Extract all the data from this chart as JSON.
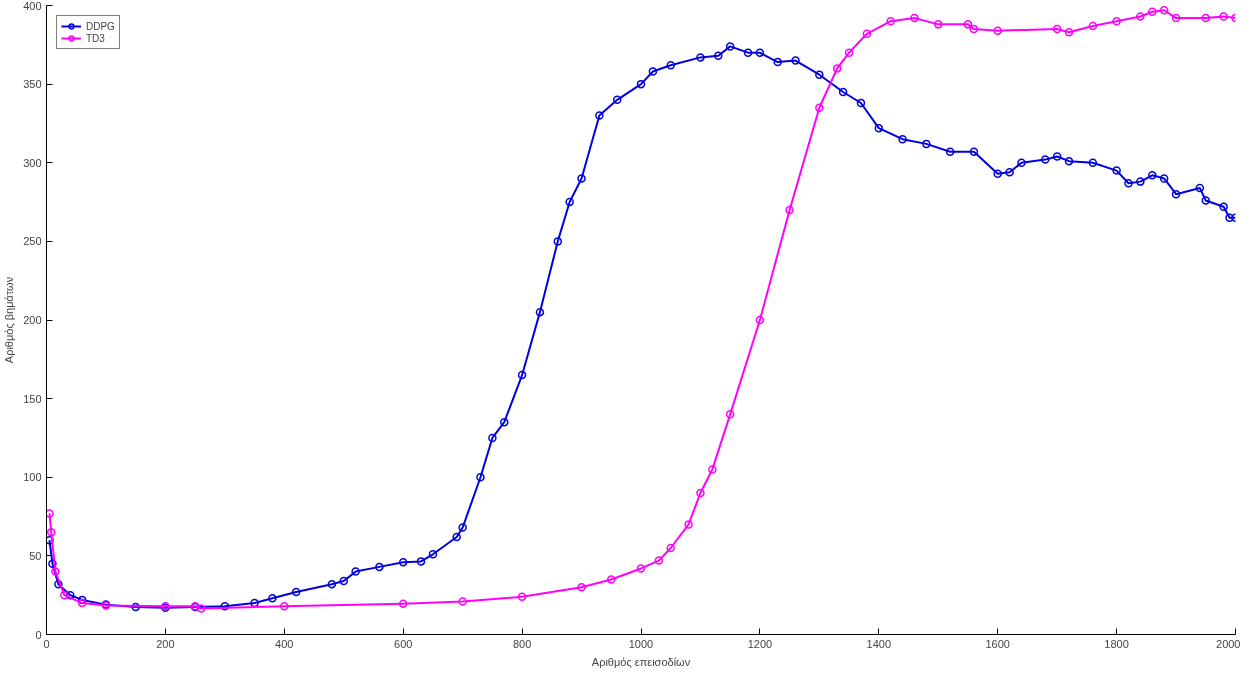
{
  "chart_data": {
    "type": "line",
    "xlabel": "Αριθμός επεισοδίων",
    "ylabel": "Αριθμός βημάτων",
    "xlim": [
      0,
      2000
    ],
    "ylim": [
      0,
      400
    ],
    "xticks": [
      0,
      200,
      400,
      600,
      800,
      1000,
      1200,
      1400,
      1600,
      1800,
      2000
    ],
    "yticks": [
      0,
      50,
      100,
      150,
      200,
      250,
      300,
      350,
      400
    ],
    "grid": false,
    "legend": "top left",
    "marker": "circle",
    "line_style": "solid",
    "series": [
      {
        "name": "DDPG",
        "color": "#0000e0",
        "x": [
          5,
          10,
          20,
          40,
          60,
          100,
          150,
          200,
          250,
          300,
          350,
          380,
          420,
          480,
          500,
          520,
          560,
          600,
          630,
          650,
          690,
          700,
          730,
          750,
          770,
          800,
          830,
          860,
          880,
          900,
          930,
          960,
          1000,
          1020,
          1050,
          1100,
          1130,
          1150,
          1180,
          1200,
          1230,
          1260,
          1300,
          1340,
          1370,
          1400,
          1440,
          1480,
          1520,
          1560,
          1600,
          1620,
          1640,
          1680,
          1700,
          1720,
          1760,
          1800,
          1820,
          1840,
          1860,
          1880,
          1900,
          1940,
          1950,
          1980,
          1990,
          2000
        ],
        "values": [
          60,
          45,
          32,
          25,
          22,
          19,
          17.5,
          17,
          17.5,
          18,
          20,
          23,
          27,
          32,
          34,
          40,
          43,
          46,
          46.5,
          51,
          62,
          68,
          100,
          125,
          135,
          165,
          205,
          250,
          275,
          290,
          330,
          340,
          350,
          358,
          362,
          367,
          368,
          374,
          370,
          370,
          364,
          365,
          356,
          345,
          338,
          322,
          315,
          312,
          307,
          307,
          293,
          294,
          300,
          302,
          304,
          301,
          300,
          295,
          287,
          288,
          292,
          290,
          280,
          284,
          276,
          272,
          265,
          265
        ]
      },
      {
        "name": "TD3",
        "color": "#ff00ff",
        "x": [
          5,
          8,
          15,
          30,
          60,
          100,
          200,
          250,
          260,
          400,
          600,
          700,
          800,
          900,
          950,
          1000,
          1030,
          1050,
          1080,
          1100,
          1120,
          1150,
          1200,
          1250,
          1300,
          1330,
          1350,
          1380,
          1420,
          1460,
          1500,
          1550,
          1560,
          1600,
          1700,
          1720,
          1760,
          1800,
          1840,
          1860,
          1880,
          1900,
          1950,
          1980,
          2000
        ],
        "values": [
          77,
          65,
          40,
          25,
          20,
          18.5,
          18,
          18,
          16.5,
          18,
          19.5,
          21,
          24,
          30,
          35,
          42,
          47,
          55,
          70,
          90,
          105,
          140,
          200,
          270,
          335,
          360,
          370,
          382,
          390,
          392,
          388,
          388,
          385,
          384,
          385,
          383,
          387,
          390,
          393,
          396,
          397,
          392,
          392,
          393,
          392
        ]
      }
    ]
  }
}
